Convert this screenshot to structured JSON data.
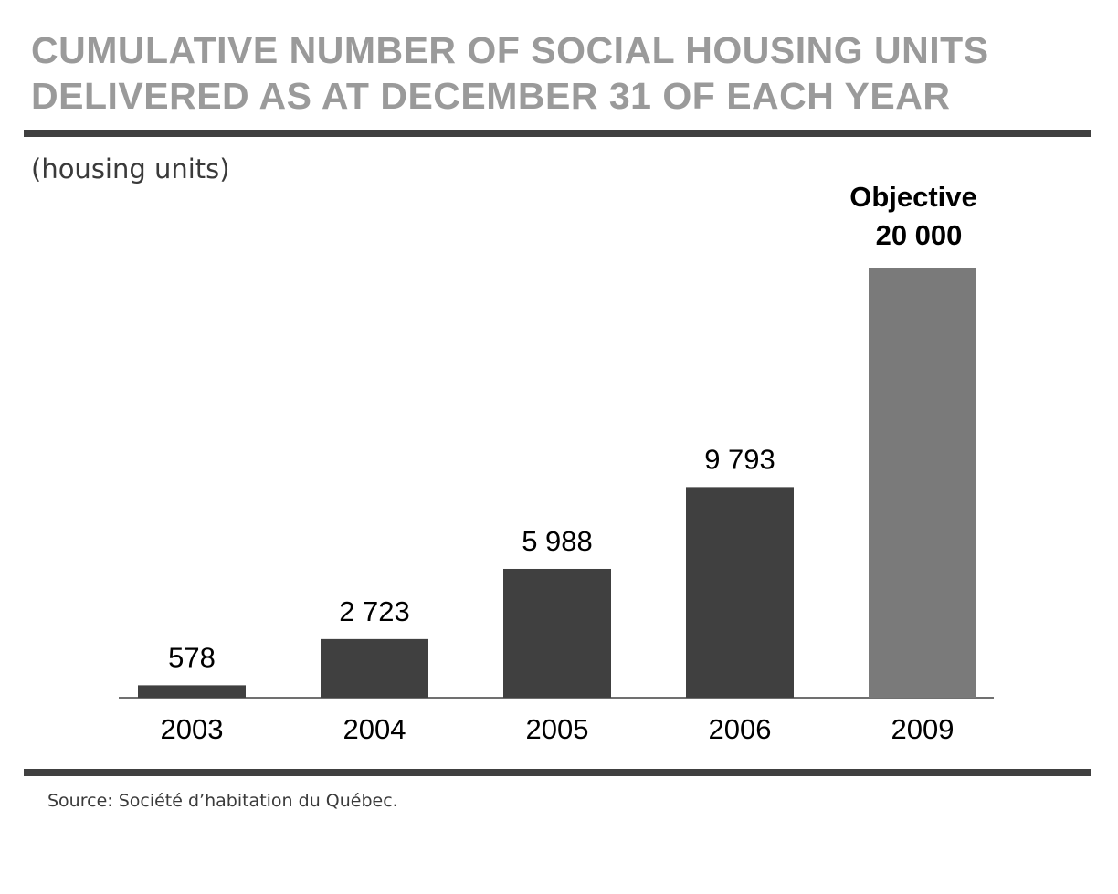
{
  "title": {
    "line1": "CUMULATIVE NUMBER OF SOCIAL HOUSING UNITS",
    "line2": "DELIVERED AS AT DECEMBER 31 OF EACH YEAR"
  },
  "units_label": "(housing units)",
  "source": "Source: Société d’habitation du Québec.",
  "colors": {
    "actual": "#404040",
    "objective": "#7a7a7a",
    "title": "#9a9a9a"
  },
  "chart_data": {
    "type": "bar",
    "title": "CUMULATIVE NUMBER OF SOCIAL HOUSING UNITS DELIVERED AS AT DECEMBER 31 OF EACH YEAR",
    "ylabel": "(housing units)",
    "xlabel": "",
    "categories": [
      "2003",
      "2004",
      "2005",
      "2006",
      "2009"
    ],
    "values": [
      578,
      2723,
      5988,
      9793,
      20000
    ],
    "value_labels": [
      "578",
      "2 723",
      "5 988",
      "9 793",
      "20 000"
    ],
    "objective_index": 4,
    "objective_label": "Objective",
    "ylim": [
      0,
      20000
    ],
    "grid": false,
    "legend": "none"
  }
}
